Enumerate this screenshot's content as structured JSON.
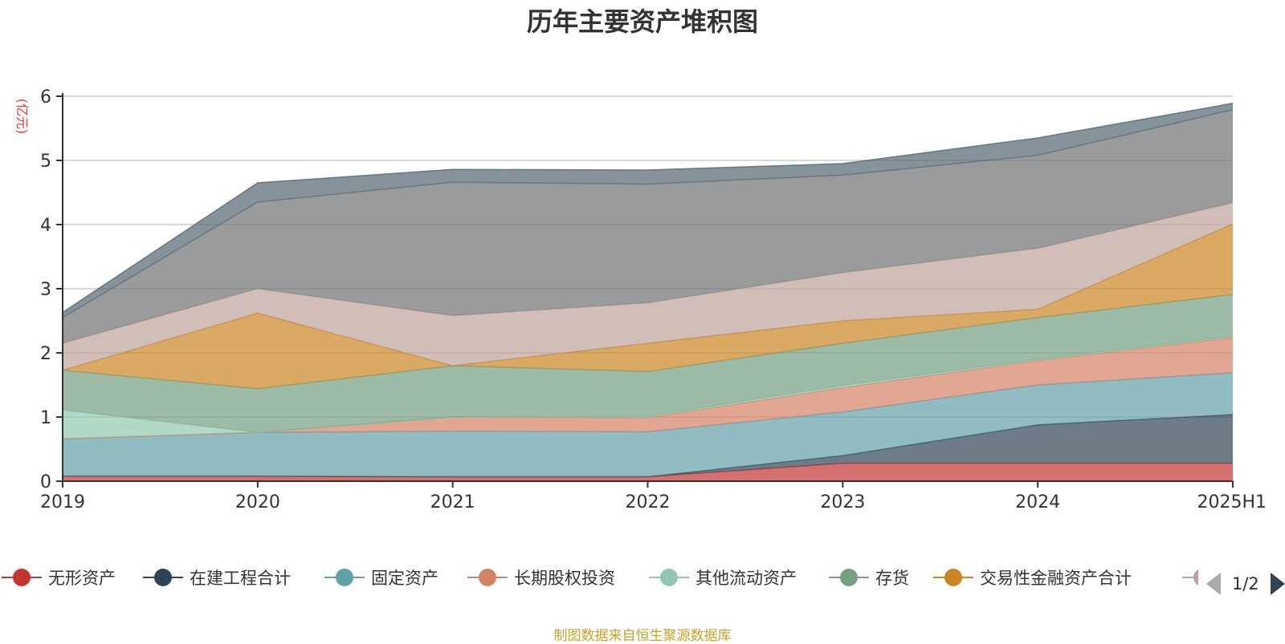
{
  "chart_data": {
    "type": "area",
    "stacked": true,
    "title": "历年主要资产堆积图",
    "ylabel": "(亿元)",
    "ylim": [
      0,
      6
    ],
    "yticks": [
      0,
      1,
      2,
      3,
      4,
      5,
      6
    ],
    "categories": [
      "2019",
      "2020",
      "2021",
      "2022",
      "2023",
      "2024",
      "2025H1"
    ],
    "grid": true,
    "legend_position": "bottom",
    "series": [
      {
        "name": "无形资产",
        "color": "#c23531",
        "values": [
          0.08,
          0.08,
          0.07,
          0.07,
          0.28,
          0.28,
          0.28
        ]
      },
      {
        "name": "在建工程合计",
        "color": "#2f4554",
        "values": [
          0.0,
          0.0,
          0.0,
          0.0,
          0.12,
          0.6,
          0.76
        ]
      },
      {
        "name": "固定资产",
        "color": "#61a0a8",
        "values": [
          0.58,
          0.68,
          0.71,
          0.7,
          0.68,
          0.62,
          0.65
        ]
      },
      {
        "name": "长期股权投资",
        "color": "#d48265",
        "values": [
          0.0,
          0.0,
          0.22,
          0.22,
          0.38,
          0.38,
          0.55
        ]
      },
      {
        "name": "其他流动资产",
        "color": "#91c7ae",
        "values": [
          0.45,
          0.0,
          0.0,
          0.02,
          0.03,
          0.02,
          0.02
        ]
      },
      {
        "name": "存货",
        "color": "#749f83",
        "values": [
          0.62,
          0.68,
          0.8,
          0.7,
          0.66,
          0.65,
          0.65
        ]
      },
      {
        "name": "交易性金融资产合计",
        "color": "#ca8622",
        "values": [
          0.0,
          1.18,
          0.0,
          0.44,
          0.35,
          0.13,
          1.1
        ]
      },
      {
        "name": "",
        "color": "#bda29a",
        "values": [
          0.42,
          0.38,
          0.78,
          0.63,
          0.75,
          0.95,
          0.33
        ]
      },
      {
        "name": "",
        "color": "#6e7074",
        "values": [
          0.4,
          1.35,
          2.08,
          1.85,
          1.52,
          1.45,
          1.45
        ]
      },
      {
        "name": "",
        "color": "#546570",
        "values": [
          0.08,
          0.3,
          0.2,
          0.22,
          0.18,
          0.27,
          0.1
        ]
      }
    ]
  },
  "legend": {
    "items": [
      "无形资产",
      "在建工程合计",
      "固定资产",
      "长期股权投资",
      "其他流动资产",
      "存货",
      "交易性金融资产合计"
    ],
    "page": "1/2"
  },
  "source": "制图数据来自恒生聚源数据库"
}
